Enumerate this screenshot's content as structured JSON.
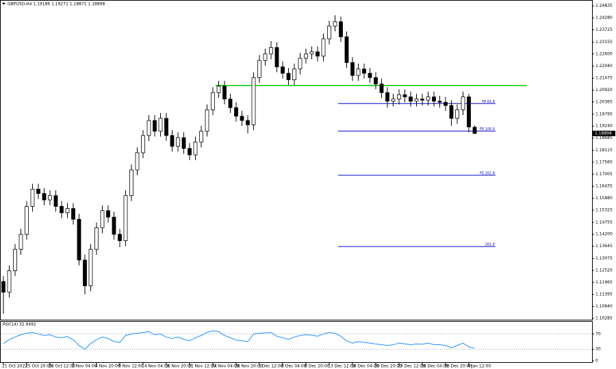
{
  "chart_data": [
    {
      "type": "candlestick",
      "title": "GBPUSD,H4  1.19186 1.19271 1.18871 1.18898",
      "categories": [
        "21 Oct 2022",
        null,
        null,
        null,
        "25 Oct 20:00",
        null,
        null,
        null,
        "28 Oct 12:00",
        null,
        null,
        null,
        "2 Nov 04:00",
        null,
        null,
        null,
        "4 Nov 20:00",
        null,
        null,
        null,
        "9 Nov 12:00",
        null,
        null,
        null,
        "14 Nov 04:00",
        null,
        null,
        null,
        "16 Nov 20:00",
        null,
        null,
        null,
        "21 Nov 12:00",
        null,
        null,
        null,
        "24 Nov 04:00",
        null,
        null,
        null,
        "28 Nov 20:00",
        null,
        null,
        null,
        "1 Dec 12:00",
        null,
        null,
        null,
        "6 Dec 04:00",
        null,
        null,
        null,
        "8 Dec 20:00",
        null,
        null,
        null,
        "13 Dec 12:00",
        null,
        null,
        null,
        "16 Dec 04:00",
        null,
        null,
        null,
        "20 Dec 20:00",
        null,
        null,
        null,
        "23 Dec 12:00",
        null,
        null,
        null,
        "28 Dec 04:00",
        null,
        null,
        null,
        "30 Dec 20:00",
        null,
        null,
        null,
        "4 Jan 12:00",
        null
      ],
      "open": [
        1.12,
        1.115,
        1.125,
        1.135,
        1.142,
        1.155,
        1.163,
        1.161,
        1.158,
        1.16,
        1.155,
        1.152,
        1.154,
        1.149,
        1.13,
        1.118,
        1.135,
        1.145,
        1.153,
        1.15,
        1.142,
        1.139,
        1.16,
        1.172,
        1.18,
        1.188,
        1.195,
        1.19,
        1.196,
        1.188,
        1.183,
        1.187,
        1.182,
        1.179,
        1.185,
        1.19,
        1.2,
        1.208,
        1.211,
        1.205,
        1.201,
        1.197,
        1.195,
        1.193,
        1.215,
        1.223,
        1.226,
        1.229,
        1.22,
        1.217,
        1.214,
        1.219,
        1.224,
        1.226,
        1.227,
        1.225,
        1.233,
        1.239,
        1.241,
        1.234,
        1.222,
        1.216,
        1.219,
        1.217,
        1.215,
        1.212,
        1.208,
        1.204,
        1.205,
        1.207,
        1.206,
        1.204,
        1.205,
        1.2045,
        1.206,
        1.204,
        1.2035,
        1.202,
        1.196,
        1.2,
        1.206,
        1.19186
      ],
      "high": [
        1.1225,
        1.1275,
        1.1375,
        1.1445,
        1.1575,
        1.1655,
        1.1655,
        1.1635,
        1.1625,
        1.1625,
        1.1575,
        1.1565,
        1.1565,
        1.1515,
        1.1325,
        1.1375,
        1.1475,
        1.1555,
        1.1555,
        1.1525,
        1.1445,
        1.1625,
        1.1745,
        1.1825,
        1.1905,
        1.1975,
        1.1975,
        1.1985,
        1.1985,
        1.1905,
        1.1895,
        1.1895,
        1.1845,
        1.1875,
        1.1925,
        1.2025,
        1.2105,
        1.2135,
        1.2135,
        1.2075,
        1.2035,
        1.1995,
        1.1975,
        1.2175,
        1.2255,
        1.2285,
        1.232,
        1.2315,
        1.2225,
        1.2195,
        1.2215,
        1.2265,
        1.2285,
        1.2295,
        1.2295,
        1.2355,
        1.2415,
        1.244,
        1.2435,
        1.2365,
        1.2245,
        1.2215,
        1.2215,
        1.2195,
        1.2175,
        1.2145,
        1.2105,
        1.2075,
        1.2095,
        1.2095,
        1.2085,
        1.2075,
        1.2075,
        1.2085,
        1.2085,
        1.2065,
        1.206,
        1.2045,
        1.2025,
        1.2085,
        1.2075,
        1.19271
      ],
      "low": [
        1.105,
        1.1125,
        1.1225,
        1.1325,
        1.1395,
        1.1525,
        1.1585,
        1.1555,
        1.1555,
        1.1525,
        1.1495,
        1.1495,
        1.1465,
        1.1275,
        1.114,
        1.1155,
        1.1325,
        1.1425,
        1.1475,
        1.1395,
        1.136,
        1.1365,
        1.1575,
        1.1695,
        1.1775,
        1.1855,
        1.1875,
        1.1875,
        1.1855,
        1.1805,
        1.1805,
        1.1795,
        1.1765,
        1.1765,
        1.1825,
        1.1875,
        1.1975,
        1.2055,
        1.2025,
        1.1985,
        1.1945,
        1.1925,
        1.189,
        1.1905,
        1.2125,
        1.2205,
        1.2235,
        1.2175,
        1.2145,
        1.2115,
        1.2115,
        1.2165,
        1.2215,
        1.2235,
        1.2225,
        1.2225,
        1.2305,
        1.2365,
        1.2315,
        1.2195,
        1.2135,
        1.2135,
        1.2145,
        1.2125,
        1.2095,
        1.2055,
        1.201,
        1.2015,
        1.2025,
        1.2035,
        1.2015,
        1.2015,
        1.202,
        1.202,
        1.2015,
        1.201,
        1.1995,
        1.1925,
        1.1935,
        1.1975,
        1.1895,
        1.18871
      ],
      "close": [
        1.115,
        1.125,
        1.135,
        1.142,
        1.155,
        1.163,
        1.161,
        1.158,
        1.16,
        1.155,
        1.152,
        1.154,
        1.149,
        1.13,
        1.118,
        1.135,
        1.145,
        1.153,
        1.15,
        1.142,
        1.139,
        1.16,
        1.172,
        1.18,
        1.188,
        1.195,
        1.19,
        1.196,
        1.188,
        1.183,
        1.187,
        1.182,
        1.179,
        1.185,
        1.19,
        1.2,
        1.208,
        1.211,
        1.205,
        1.201,
        1.197,
        1.195,
        1.193,
        1.215,
        1.223,
        1.226,
        1.229,
        1.22,
        1.217,
        1.214,
        1.219,
        1.224,
        1.226,
        1.227,
        1.225,
        1.233,
        1.239,
        1.241,
        1.234,
        1.222,
        1.216,
        1.219,
        1.217,
        1.215,
        1.212,
        1.208,
        1.204,
        1.205,
        1.207,
        1.206,
        1.204,
        1.205,
        1.2045,
        1.206,
        1.204,
        1.2035,
        1.202,
        1.196,
        1.2,
        1.206,
        1.192,
        1.18898
      ],
      "up_color": "#ffffff",
      "down_color": "#000000",
      "outline_color": "#000000",
      "ylim": [
        1.1022,
        1.2505
      ],
      "yticks": [
        1.24835,
        {
          "value": 1.2428,
          "label": "1.24280"
        },
        1.23725,
        1.23155,
        {
          "value": 1.226,
          "label": "1.22600"
        },
        {
          "value": 1.2204,
          "label": "1.22040"
        },
        1.21475,
        {
          "value": 1.2092,
          "label": "1.20920"
        },
        1.20365,
        1.19795,
        {
          "value": 1.1924,
          "label": "1.19240"
        },
        1.18685,
        1.18115,
        {
          "value": 1.1756,
          "label": "1.17560"
        },
        1.17005,
        1.16435,
        {
          "value": 1.1588,
          "label": "1.15880"
        },
        1.15325,
        1.14755,
        {
          "value": 1.142,
          "label": "1.14200"
        },
        1.13645,
        1.13075,
        {
          "value": 1.1252,
          "label": "1.12520"
        },
        1.11965,
        1.11395,
        {
          "value": 1.1084,
          "label": "1.10840"
        },
        1.10285
      ],
      "last_price": 1.18898,
      "trend_line": {
        "value": 1.2113,
        "color": "#00c800"
      },
      "fib_lines": [
        {
          "label": "FE 61.8",
          "value": 1.2029,
          "color": "#0000c8"
        },
        {
          "label": "FE 100.0",
          "value": 1.1901,
          "color": "#0000c8"
        },
        {
          "label": "FE 161.8",
          "value": 1.1695,
          "color": "#0000c8"
        },
        {
          "label": "261.8",
          "value": 1.1363,
          "color": "#0000c8"
        }
      ]
    },
    {
      "type": "line",
      "title": "RSI(14) 32.9492",
      "color": "#1e90ff",
      "values": [
        45,
        55,
        62,
        68,
        72,
        74,
        70,
        66,
        68,
        62,
        60,
        63,
        55,
        40,
        30,
        45,
        55,
        62,
        58,
        50,
        48,
        66,
        70,
        72,
        74,
        76,
        68,
        70,
        62,
        58,
        62,
        56,
        52,
        60,
        66,
        74,
        78,
        76,
        66,
        60,
        54,
        52,
        50,
        70,
        72,
        73,
        74,
        64,
        60,
        56,
        62,
        66,
        68,
        67,
        64,
        70,
        74,
        72,
        64,
        52,
        46,
        50,
        48,
        46,
        44,
        42,
        40,
        42,
        46,
        44,
        42,
        44,
        43,
        46,
        42,
        42,
        40,
        34,
        40,
        46,
        36,
        32.9492
      ],
      "ylim": [
        0,
        100
      ],
      "yticks": [
        0,
        30,
        70
      ],
      "levels": [
        30,
        70
      ]
    }
  ]
}
